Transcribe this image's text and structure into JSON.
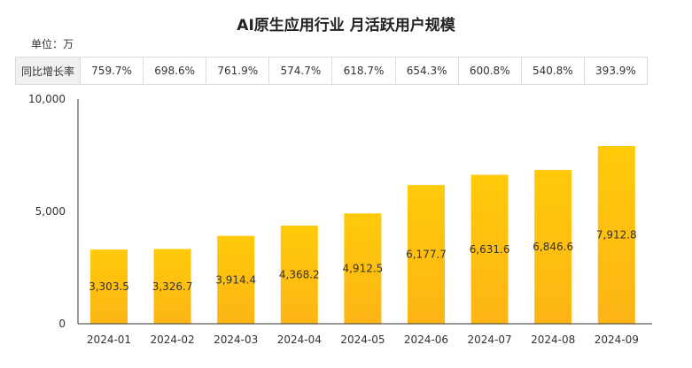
{
  "title": "AI原生应用行业 月活跃用户规模",
  "unit_label": "单位：万",
  "yoy_table": {
    "header": "同比增长率",
    "values": [
      "759.7%",
      "698.6%",
      "761.9%",
      "574.7%",
      "618.7%",
      "654.3%",
      "600.8%",
      "540.8%",
      "393.9%"
    ]
  },
  "colors": {
    "bar_top": "#FFCA0A",
    "bar_bottom": "#FDB515",
    "axis": "#333333"
  },
  "chart_data": {
    "type": "bar",
    "title": "AI原生应用行业 月活跃用户规模",
    "categories": [
      "2024-01",
      "2024-02",
      "2024-03",
      "2024-04",
      "2024-05",
      "2024-06",
      "2024-07",
      "2024-08",
      "2024-09"
    ],
    "values": [
      3303.5,
      3326.7,
      3914.4,
      4368.2,
      4912.5,
      6177.7,
      6631.6,
      6846.6,
      7912.8
    ],
    "value_labels": [
      "3,303.5",
      "3,326.7",
      "3,914.4",
      "4,368.2",
      "4,912.5",
      "6,177.7",
      "6,631.6",
      "6,846.6",
      "7,912.8"
    ],
    "yticks": [
      0,
      5000,
      10000
    ],
    "ytick_labels": [
      "0",
      "5,000",
      "10,000"
    ],
    "ylim": [
      0,
      10000
    ],
    "grid": false
  }
}
